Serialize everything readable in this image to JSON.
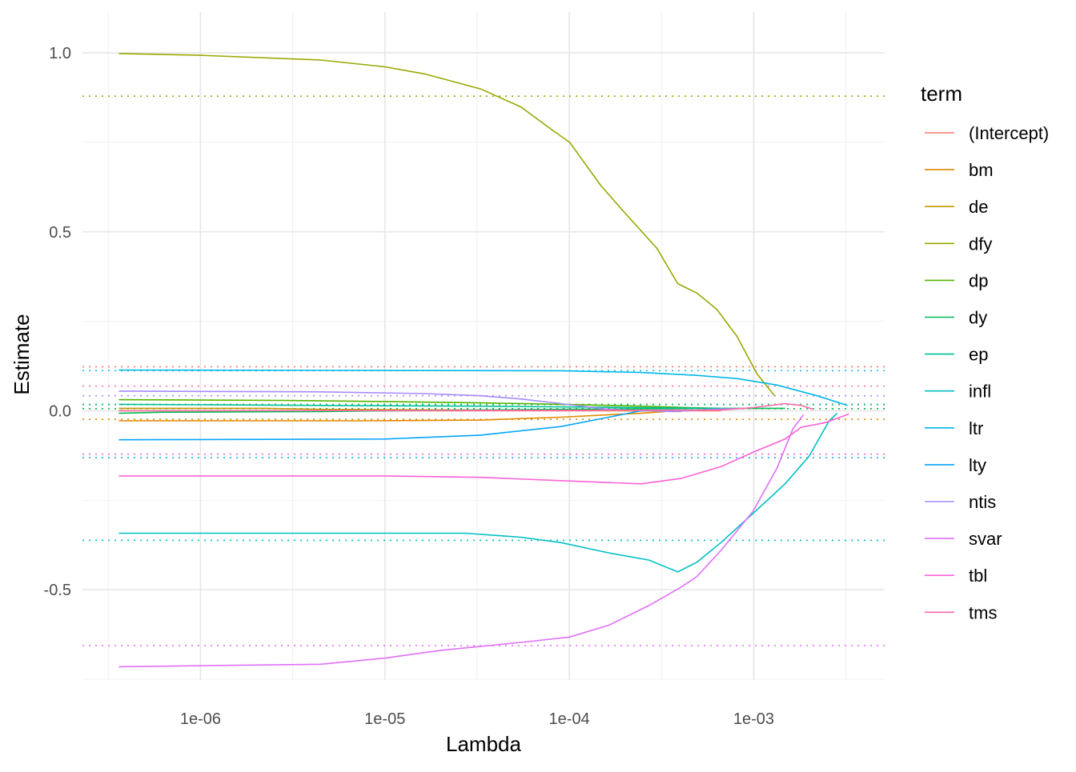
{
  "chart_data": {
    "type": "line",
    "title": "",
    "xlabel": "Lambda",
    "ylabel": "Estimate",
    "x_scale": "log10",
    "xlim_log10": [
      -6.64,
      -2.29
    ],
    "ylim": [
      -0.752,
      1.114
    ],
    "x_ticks": [
      {
        "log10": -6,
        "label": "1e-06"
      },
      {
        "log10": -5,
        "label": "1e-05"
      },
      {
        "log10": -4,
        "label": "1e-04"
      },
      {
        "log10": -3,
        "label": "1e-03"
      }
    ],
    "y_ticks": [
      {
        "value": 1.0,
        "label": "1.0"
      },
      {
        "value": 0.5,
        "label": "0.5"
      },
      {
        "value": 0.0,
        "label": "0.0"
      },
      {
        "value": -0.5,
        "label": "-0.5"
      }
    ],
    "grid": true,
    "legend": {
      "title": "term",
      "placement": "right"
    },
    "series": [
      {
        "name": "(Intercept)",
        "color": "#F8766D",
        "reference": 0.123,
        "x": [
          -6.443,
          -3.178
        ],
        "y": [
          0.0,
          0.0
        ]
      },
      {
        "name": "bm",
        "color": "#E38900",
        "reference": -0.024,
        "x": [
          -6.443,
          -5.132,
          -4.48,
          -4.046,
          -3.786,
          -3.612,
          -3.482
        ],
        "y": [
          -0.028,
          -0.028,
          -0.026,
          -0.018,
          -0.011,
          -0.007,
          -0.002
        ]
      },
      {
        "name": "de",
        "color": "#C49A00",
        "reference": 0.006,
        "x": [
          -6.443,
          -5.653,
          -5.349,
          -4.48,
          -4.046,
          -3.612,
          -3.395
        ],
        "y": [
          0.007,
          0.007,
          0.004,
          0.002,
          0.002,
          0.0,
          -0.002
        ]
      },
      {
        "name": "dfy",
        "color": "#99A800",
        "reference": 0.879,
        "x": [
          -6.443,
          -6.0,
          -5.349,
          -5.001,
          -4.784,
          -4.48,
          -4.263,
          -4.089,
          -3.998,
          -3.829,
          -3.699,
          -3.525,
          -3.412,
          -3.308,
          -3.199,
          -3.091,
          -2.982,
          -2.887
        ],
        "y": [
          0.998,
          0.993,
          0.98,
          0.961,
          0.941,
          0.899,
          0.849,
          0.783,
          0.75,
          0.629,
          0.553,
          0.454,
          0.355,
          0.329,
          0.283,
          0.208,
          0.103,
          0.042
        ]
      },
      {
        "name": "dp",
        "color": "#53B400",
        "reference": 0.018,
        "x": [
          -6.443,
          -5.566,
          -5.001,
          -4.48,
          -4.046,
          -3.612,
          -3.351,
          -3.178
        ],
        "y": [
          0.031,
          0.029,
          0.026,
          0.022,
          0.018,
          0.013,
          0.009,
          0.007
        ]
      },
      {
        "name": "dy",
        "color": "#00BC56",
        "reference": 0.006,
        "x": [
          -6.443,
          -6.217,
          -5.349,
          -5.001,
          -4.046,
          -3.178,
          -2.83
        ],
        "y": [
          -0.007,
          -0.004,
          -0.002,
          0.0,
          0.004,
          0.007,
          0.007
        ]
      },
      {
        "name": "ep",
        "color": "#00C094",
        "reference": 0.017,
        "x": [
          -6.443,
          -5.349,
          -4.48,
          -3.612,
          -3.178
        ],
        "y": [
          0.018,
          0.015,
          0.013,
          0.009,
          0.007
        ]
      },
      {
        "name": "infl",
        "color": "#00BFC4",
        "reference": -0.362,
        "x": [
          -6.443,
          -5.001,
          -4.567,
          -4.263,
          -4.046,
          -3.786,
          -3.568,
          -3.412,
          -3.308,
          -3.178,
          -3.004,
          -2.83,
          -2.7,
          -2.591,
          -2.548
        ],
        "y": [
          -0.342,
          -0.342,
          -0.342,
          -0.353,
          -0.368,
          -0.397,
          -0.417,
          -0.45,
          -0.423,
          -0.368,
          -0.287,
          -0.204,
          -0.127,
          -0.028,
          -0.007
        ]
      },
      {
        "name": "ltr",
        "color": "#00B6EB",
        "reference": 0.112,
        "x": [
          -6.443,
          -4.046,
          -3.612,
          -3.308,
          -3.091,
          -2.874,
          -2.657,
          -2.492
        ],
        "y": [
          0.114,
          0.112,
          0.107,
          0.099,
          0.09,
          0.072,
          0.042,
          0.015
        ]
      },
      {
        "name": "lty",
        "color": "#06A4FF",
        "reference": -0.131,
        "x": [
          -6.443,
          -5.001,
          -4.48,
          -4.046,
          -3.786,
          -3.612,
          -3.438
        ],
        "y": [
          -0.081,
          -0.079,
          -0.068,
          -0.044,
          -0.018,
          0.0,
          0.002
        ]
      },
      {
        "name": "ntis",
        "color": "#A58AFF",
        "reference": 0.042,
        "x": [
          -6.443,
          -5.349,
          -4.784,
          -4.48,
          -4.263,
          -4.046,
          -3.786,
          -3.438,
          -3.221,
          -3.047
        ],
        "y": [
          0.055,
          0.053,
          0.048,
          0.042,
          0.033,
          0.02,
          0.004,
          -0.002,
          0.004,
          0.007
        ]
      },
      {
        "name": "svar",
        "color": "#DF70F8",
        "reference": -0.656,
        "x": [
          -6.443,
          -5.349,
          -5.001,
          -4.697,
          -4.263,
          -3.998,
          -3.786,
          -3.568,
          -3.395,
          -3.308,
          -3.178,
          -3.004,
          -2.874,
          -2.787,
          -2.73
        ],
        "y": [
          -0.715,
          -0.708,
          -0.691,
          -0.669,
          -0.647,
          -0.632,
          -0.599,
          -0.544,
          -0.493,
          -0.463,
          -0.39,
          -0.281,
          -0.16,
          -0.05,
          -0.011
        ]
      },
      {
        "name": "tbl",
        "color": "#FB61D7",
        "reference": -0.121,
        "x": [
          -6.443,
          -5.001,
          -4.48,
          -4.046,
          -3.612,
          -3.395,
          -3.178,
          -3.004,
          -2.83,
          -2.743,
          -2.613,
          -2.483
        ],
        "y": [
          -0.182,
          -0.182,
          -0.186,
          -0.195,
          -0.204,
          -0.189,
          -0.156,
          -0.116,
          -0.079,
          -0.046,
          -0.033,
          -0.009
        ]
      },
      {
        "name": "tms",
        "color": "#FF66A8",
        "reference": 0.069,
        "x": [
          -6.443,
          -3.178,
          -3.004,
          -2.83,
          -2.743,
          -2.678
        ],
        "y": [
          0.0,
          0.002,
          0.009,
          0.02,
          0.015,
          0.004
        ]
      }
    ]
  }
}
